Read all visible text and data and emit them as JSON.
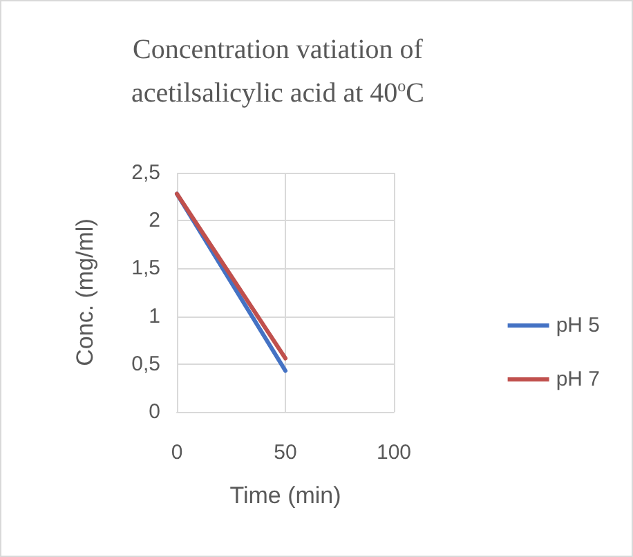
{
  "chart_data": {
    "type": "line",
    "title": "Concentration  vatiation of acetilsalicylic acid at 40$^{o}$C",
    "xlabel": "Time (min)",
    "ylabel": "Conc. (mg/ml)",
    "x": [
      0,
      50
    ],
    "series": [
      {
        "name": "pH 5",
        "color": "#4472c4",
        "values": [
          2.28,
          0.43
        ]
      },
      {
        "name": "pH 7",
        "color": "#c0504d",
        "values": [
          2.28,
          0.56
        ]
      }
    ],
    "xlim": [
      0,
      100
    ],
    "xticks": [
      0,
      50,
      100
    ],
    "ylim": [
      0,
      2.5
    ],
    "yticks": [
      0,
      {
        "value": 0.5,
        "label": "0,5"
      },
      1,
      {
        "value": 1.5,
        "label": "1,5"
      },
      2,
      {
        "value": 2.5,
        "label": "2,5"
      }
    ],
    "grid": true,
    "legend": "right",
    "marker": "none",
    "line_style": "solid"
  }
}
